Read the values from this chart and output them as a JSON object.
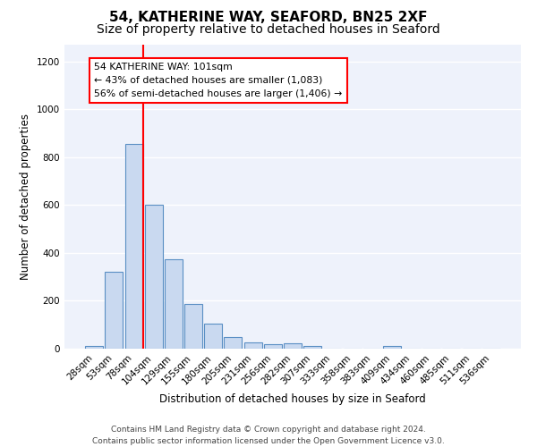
{
  "title_line1": "54, KATHERINE WAY, SEAFORD, BN25 2XF",
  "title_line2": "Size of property relative to detached houses in Seaford",
  "xlabel": "Distribution of detached houses by size in Seaford",
  "ylabel": "Number of detached properties",
  "footer_line1": "Contains HM Land Registry data © Crown copyright and database right 2024.",
  "footer_line2": "Contains public sector information licensed under the Open Government Licence v3.0.",
  "bar_labels": [
    "28sqm",
    "53sqm",
    "78sqm",
    "104sqm",
    "129sqm",
    "155sqm",
    "180sqm",
    "205sqm",
    "231sqm",
    "256sqm",
    "282sqm",
    "307sqm",
    "333sqm",
    "358sqm",
    "383sqm",
    "409sqm",
    "434sqm",
    "460sqm",
    "485sqm",
    "511sqm",
    "536sqm"
  ],
  "bar_values": [
    13,
    320,
    855,
    600,
    375,
    185,
    105,
    48,
    25,
    18,
    22,
    10,
    0,
    0,
    0,
    10,
    0,
    0,
    0,
    0,
    0
  ],
  "bar_color": "#c9d9f0",
  "bar_edge_color": "#5a8fc4",
  "fig_background_color": "#ffffff",
  "ax_background_color": "#eef2fb",
  "grid_color": "#ffffff",
  "annotation_text": "54 KATHERINE WAY: 101sqm\n← 43% of detached houses are smaller (1,083)\n56% of semi-detached houses are larger (1,406) →",
  "annotation_box_color": "white",
  "annotation_box_edge_color": "red",
  "ylim": [
    0,
    1270
  ],
  "yticks": [
    0,
    200,
    400,
    600,
    800,
    1000,
    1200
  ],
  "title_fontsize": 11,
  "subtitle_fontsize": 10,
  "axis_label_fontsize": 8.5,
  "tick_fontsize": 7.5,
  "annotation_fontsize": 7.8,
  "footer_fontsize": 6.5
}
